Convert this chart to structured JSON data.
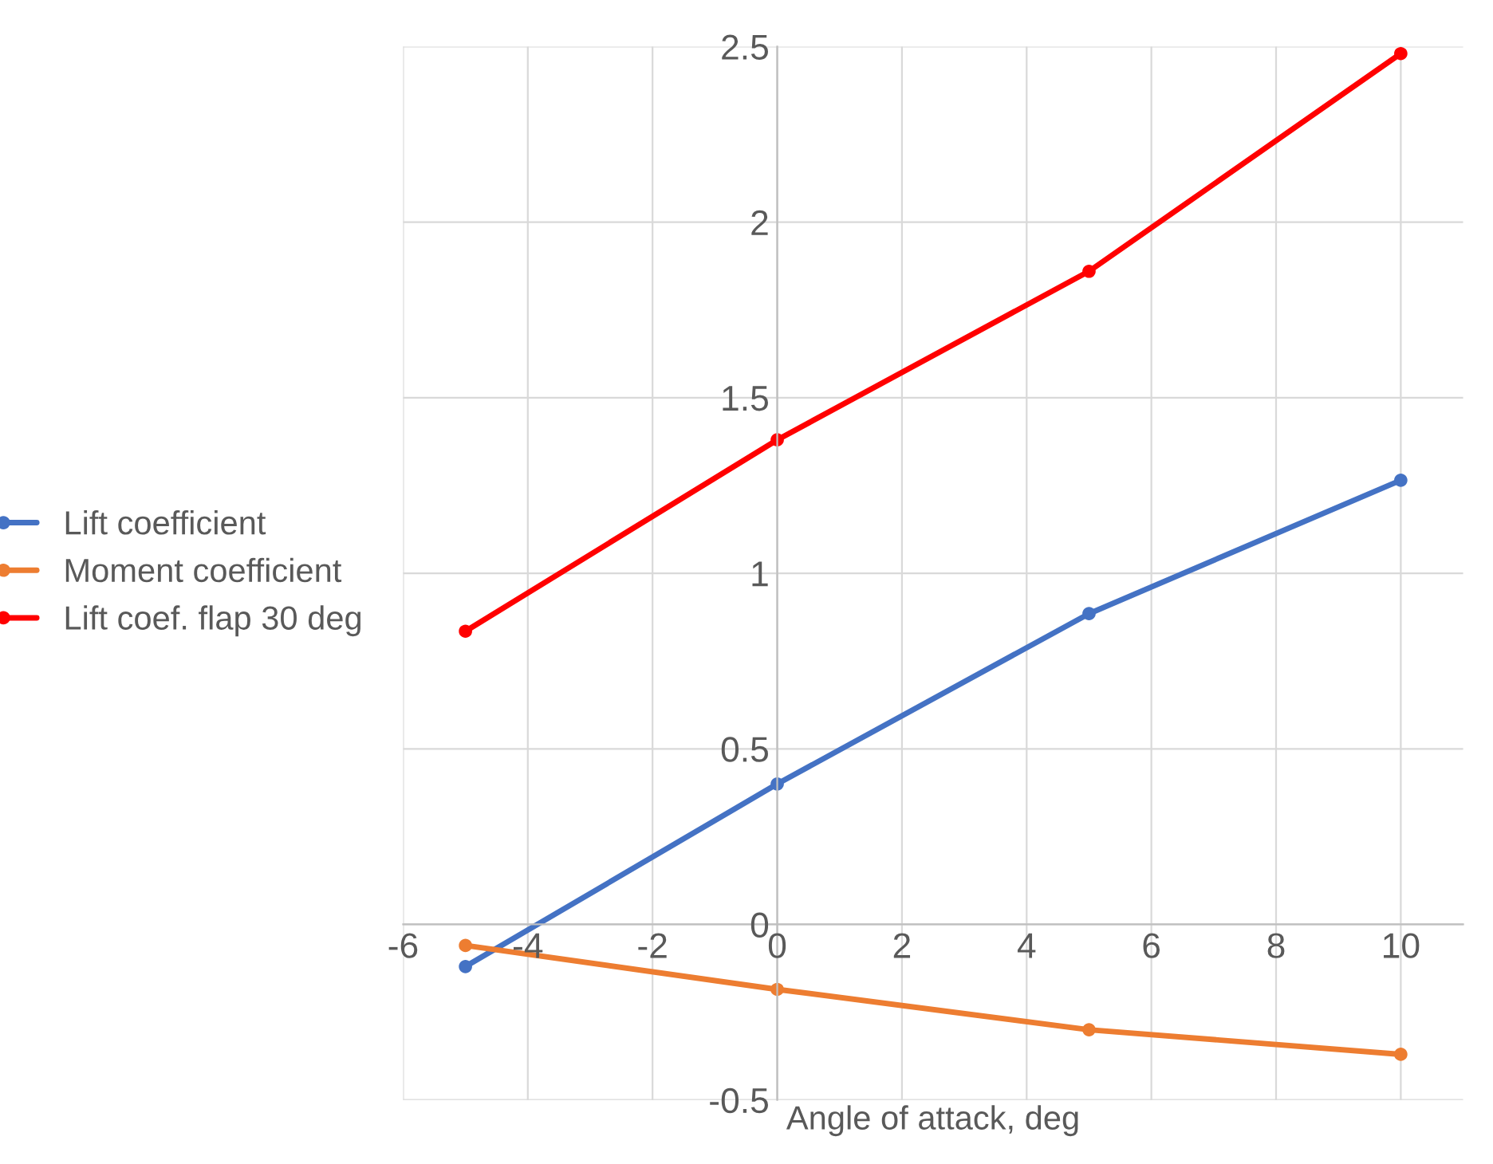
{
  "chart_data": {
    "type": "line",
    "xlabel": "Angle of attack, deg",
    "x": [
      -5,
      0,
      5,
      10
    ],
    "series": [
      {
        "name": "Lift coefficient",
        "color": "#4472c4",
        "values": [
          -0.12,
          0.4,
          0.885,
          1.265
        ]
      },
      {
        "name": "Moment coefficient",
        "color": "#ed7d31",
        "values": [
          -0.06,
          -0.185,
          -0.3,
          -0.37
        ]
      },
      {
        "name": "Lift coef. flap 30 deg",
        "color": "#ff0000",
        "values": [
          0.835,
          1.38,
          1.86,
          2.48
        ]
      }
    ],
    "xlim": [
      -6,
      11
    ],
    "xticks": [
      -6,
      -4,
      -2,
      0,
      2,
      4,
      6,
      8,
      10
    ],
    "ylim": [
      -0.5,
      2.5
    ],
    "yticks": [
      {
        "value": -0.5,
        "label": "-0.5"
      },
      0,
      0.5,
      1,
      1.5,
      2,
      2.5
    ],
    "grid": true,
    "legend": "left",
    "marker": "circle",
    "line_style": "solid"
  }
}
